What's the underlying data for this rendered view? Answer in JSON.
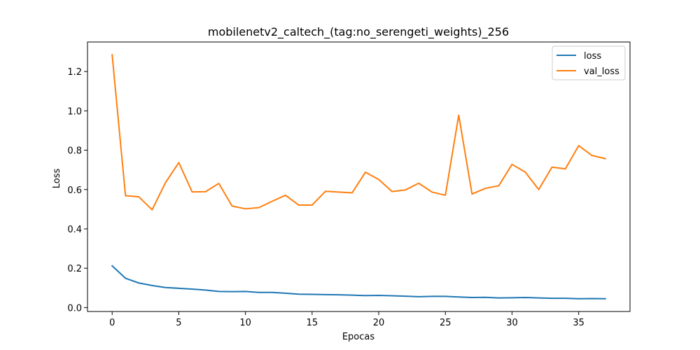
{
  "chart_data": {
    "type": "line",
    "title": "mobilenetv2_caltech_(tag:no_serengeti_weights)_256",
    "xlabel": "Epocas",
    "ylabel": "Loss",
    "xlim": [
      -1.85,
      38.85
    ],
    "ylim": [
      -0.02,
      1.35
    ],
    "xticks": [
      0,
      5,
      10,
      15,
      20,
      25,
      30,
      35
    ],
    "yticks": [
      0.0,
      0.2,
      0.4,
      0.6,
      0.8,
      1.0,
      1.2
    ],
    "xtick_labels": [
      "0",
      "5",
      "10",
      "15",
      "20",
      "25",
      "30",
      "35"
    ],
    "ytick_labels": [
      "0.0",
      "0.2",
      "0.4",
      "0.6",
      "0.8",
      "1.0",
      "1.2"
    ],
    "grid": false,
    "legend_position": "top-right",
    "x": [
      0,
      1,
      2,
      3,
      4,
      5,
      6,
      7,
      8,
      9,
      10,
      11,
      12,
      13,
      14,
      15,
      16,
      17,
      18,
      19,
      20,
      21,
      22,
      23,
      24,
      25,
      26,
      27,
      28,
      29,
      30,
      31,
      32,
      33,
      34,
      35,
      36,
      37
    ],
    "series": [
      {
        "name": "loss",
        "color": "#1f77b4",
        "values": [
          0.212,
          0.149,
          0.125,
          0.112,
          0.102,
          0.098,
          0.094,
          0.089,
          0.082,
          0.081,
          0.082,
          0.077,
          0.077,
          0.073,
          0.068,
          0.067,
          0.066,
          0.065,
          0.063,
          0.061,
          0.062,
          0.06,
          0.058,
          0.055,
          0.057,
          0.057,
          0.054,
          0.051,
          0.052,
          0.049,
          0.05,
          0.051,
          0.049,
          0.047,
          0.047,
          0.045,
          0.046,
          0.045
        ]
      },
      {
        "name": "val_loss",
        "color": "#ff7f0e",
        "values": [
          1.285,
          0.569,
          0.563,
          0.497,
          0.635,
          0.737,
          0.588,
          0.589,
          0.631,
          0.516,
          0.502,
          0.508,
          0.54,
          0.571,
          0.521,
          0.521,
          0.591,
          0.587,
          0.583,
          0.688,
          0.651,
          0.59,
          0.598,
          0.632,
          0.587,
          0.571,
          0.978,
          0.577,
          0.606,
          0.619,
          0.728,
          0.688,
          0.6,
          0.714,
          0.705,
          0.823,
          0.773,
          0.757
        ]
      }
    ]
  }
}
